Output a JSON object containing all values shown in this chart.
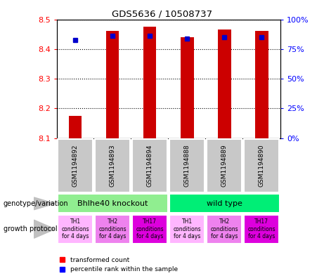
{
  "title": "GDS5636 / 10508737",
  "samples": [
    "GSM1194892",
    "GSM1194893",
    "GSM1194894",
    "GSM1194888",
    "GSM1194889",
    "GSM1194890"
  ],
  "red_values": [
    8.175,
    8.46,
    8.475,
    8.44,
    8.465,
    8.46
  ],
  "blue_y_values": [
    8.43,
    8.445,
    8.445,
    8.435,
    8.44,
    8.44
  ],
  "y_min": 8.1,
  "y_max": 8.5,
  "y_ticks": [
    8.1,
    8.2,
    8.3,
    8.4,
    8.5
  ],
  "y2_ticks": [
    0,
    25,
    50,
    75,
    100
  ],
  "genotype_groups": [
    {
      "label": "Bhlhe40 knockout",
      "color": "#90EE90",
      "start": 0,
      "end": 3
    },
    {
      "label": "wild type",
      "color": "#00EE76",
      "start": 3,
      "end": 6
    }
  ],
  "growth_protocol_labels": [
    "TH1\nconditions\nfor 4 days",
    "TH2\nconditions\nfor 4 days",
    "TH17\nconditions\nfor 4 days",
    "TH1\nconditions\nfor 4 days",
    "TH2\nconditions\nfor 4 days",
    "TH17\nconditions\nfor 4 days"
  ],
  "growth_protocol_colors": [
    "#FFB6FF",
    "#EE82EE",
    "#DD00DD",
    "#FFB6FF",
    "#EE82EE",
    "#DD00DD"
  ],
  "bar_color": "#CC0000",
  "dot_color": "#0000CC",
  "sample_box_color": "#C8C8C8",
  "label_left_geno": "genotype/variation",
  "label_left_growth": "growth protocol",
  "legend_red": "transformed count",
  "legend_blue": "percentile rank within the sample"
}
